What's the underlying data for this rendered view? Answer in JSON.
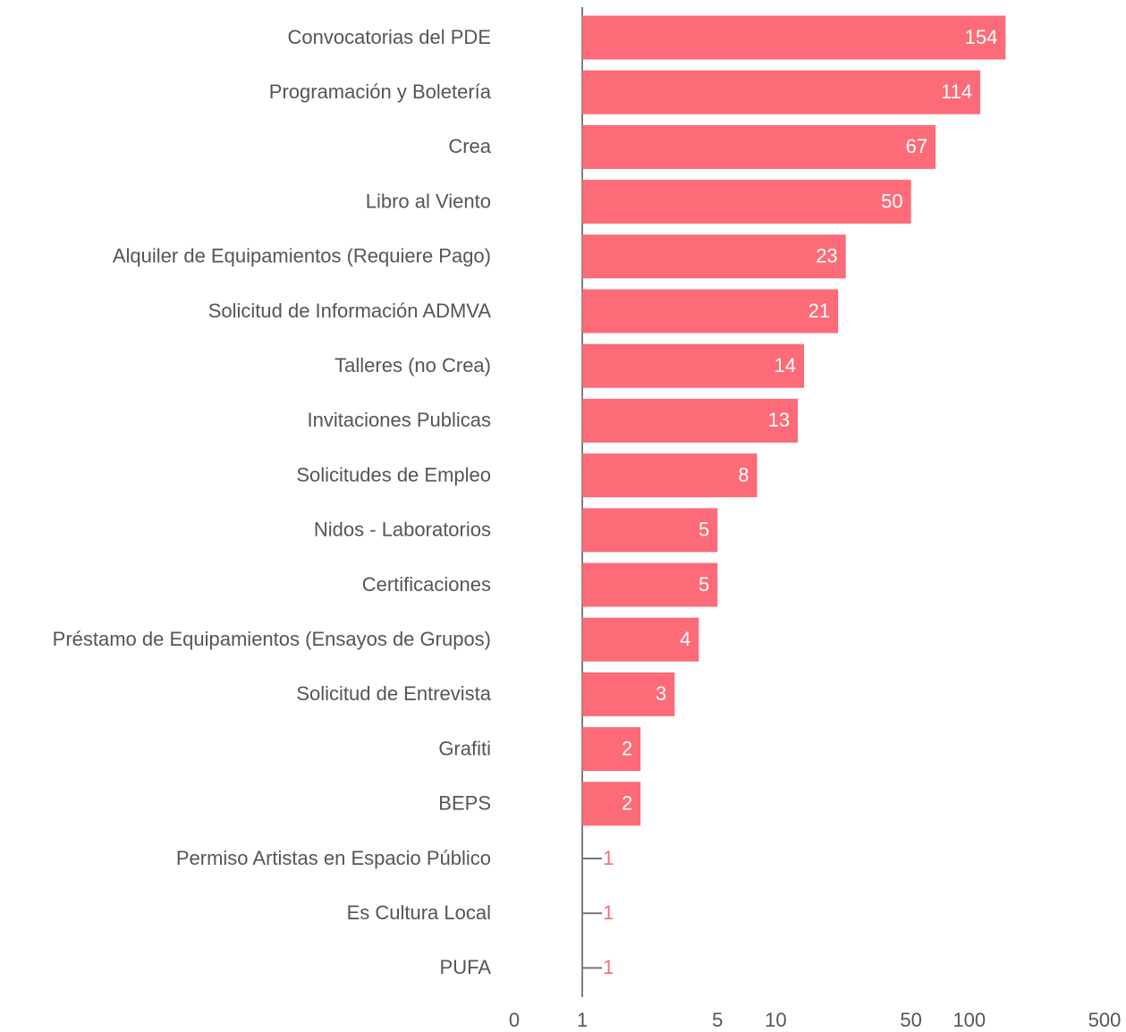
{
  "chart_data": {
    "type": "bar",
    "orientation": "horizontal",
    "categories": [
      "Convocatorias del PDE",
      "Programación y Boletería",
      "Crea",
      "Libro al Viento",
      "Alquiler de Equipamientos (Requiere Pago)",
      "Solicitud de Información ADMVA",
      "Talleres (no Crea)",
      "Invitaciones Publicas",
      "Solicitudes de Empleo",
      "Nidos - Laboratorios",
      "Certificaciones",
      "Préstamo de Equipamientos (Ensayos de Grupos)",
      "Solicitud de Entrevista",
      "Grafiti",
      "BEPS",
      "Permiso Artistas en Espacio Público",
      "Es Cultura Local",
      "PUFA"
    ],
    "values": [
      154,
      114,
      67,
      50,
      23,
      21,
      14,
      13,
      8,
      5,
      5,
      4,
      3,
      2,
      2,
      1,
      1,
      1
    ],
    "color": "#fc6b77",
    "log_scale": true,
    "xlim": [
      0.445,
      500
    ],
    "xticks": [
      0,
      1,
      5,
      10,
      50,
      100,
      500
    ]
  }
}
